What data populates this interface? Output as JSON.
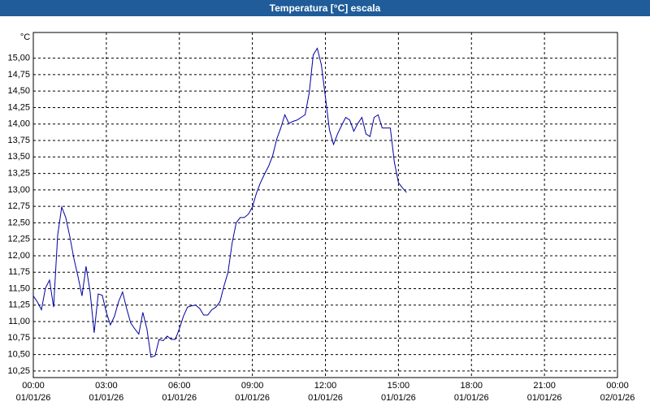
{
  "chart_data": {
    "type": "line",
    "title": "Temperatura [°C] escala",
    "y_label": "°C",
    "xlim": [
      0,
      1440
    ],
    "ylim": [
      10.15,
      15.39
    ],
    "grid": true,
    "xticks": [
      {
        "value": 0,
        "label": "00:00",
        "date": "01/01/26"
      },
      {
        "value": 180,
        "label": "03:00",
        "date": "01/01/26"
      },
      {
        "value": 360,
        "label": "06:00",
        "date": "01/01/26"
      },
      {
        "value": 540,
        "label": "09:00",
        "date": "01/01/26"
      },
      {
        "value": 720,
        "label": "12:00",
        "date": "01/01/26"
      },
      {
        "value": 900,
        "label": "15:00",
        "date": "01/01/26"
      },
      {
        "value": 1080,
        "label": "18:00",
        "date": "01/01/26"
      },
      {
        "value": 1260,
        "label": "21:00",
        "date": "01/01/26"
      },
      {
        "value": 1440,
        "label": "00:00",
        "date": "02/01/26"
      }
    ],
    "yticks": [
      {
        "value": 10.25,
        "label": "10,25"
      },
      {
        "value": 10.5,
        "label": "10,50"
      },
      {
        "value": 10.75,
        "label": "10,75"
      },
      {
        "value": 11,
        "label": "11,00"
      },
      {
        "value": 11.25,
        "label": "11,25"
      },
      {
        "value": 11.5,
        "label": "11,50"
      },
      {
        "value": 11.75,
        "label": "11,75"
      },
      {
        "value": 12,
        "label": "12,00"
      },
      {
        "value": 12.25,
        "label": "12,25"
      },
      {
        "value": 12.5,
        "label": "12,50"
      },
      {
        "value": 12.75,
        "label": "12,75"
      },
      {
        "value": 13,
        "label": "13,00"
      },
      {
        "value": 13.25,
        "label": "13,25"
      },
      {
        "value": 13.5,
        "label": "13,50"
      },
      {
        "value": 13.75,
        "label": "13,75"
      },
      {
        "value": 14,
        "label": "14,00"
      },
      {
        "value": 14.25,
        "label": "14,25"
      },
      {
        "value": 14.5,
        "label": "14,50"
      },
      {
        "value": 14.75,
        "label": "14,75"
      },
      {
        "value": 15,
        "label": "15,00"
      }
    ],
    "series": [
      {
        "color": "#0000a0",
        "x": [
          0,
          10,
          20,
          30,
          40,
          50,
          60,
          70,
          80,
          90,
          100,
          110,
          120,
          130,
          140,
          150,
          160,
          170,
          180,
          190,
          200,
          210,
          220,
          230,
          240,
          250,
          260,
          270,
          280,
          290,
          300,
          310,
          320,
          330,
          340,
          350,
          360,
          370,
          380,
          390,
          400,
          410,
          420,
          430,
          440,
          450,
          460,
          470,
          480,
          490,
          500,
          510,
          520,
          530,
          540,
          550,
          560,
          570,
          580,
          590,
          600,
          610,
          620,
          630,
          640,
          650,
          660,
          670,
          680,
          690,
          700,
          710,
          720,
          730,
          740,
          750,
          760,
          770,
          780,
          790,
          800,
          810,
          820,
          830,
          840,
          850,
          860,
          870,
          880,
          890,
          900,
          910,
          920
        ],
        "values": [
          11.39,
          11.3,
          11.18,
          11.51,
          11.63,
          11.22,
          12.31,
          12.74,
          12.58,
          12.29,
          11.96,
          11.69,
          11.39,
          11.84,
          11.45,
          10.83,
          11.42,
          11.4,
          11.14,
          10.95,
          11.08,
          11.3,
          11.45,
          11.2,
          10.98,
          10.89,
          10.81,
          11.14,
          10.89,
          10.46,
          10.48,
          10.73,
          10.71,
          10.78,
          10.73,
          10.73,
          10.89,
          11.08,
          11.22,
          11.24,
          11.25,
          11.2,
          11.1,
          11.1,
          11.18,
          11.22,
          11.3,
          11.54,
          11.75,
          12.19,
          12.5,
          12.58,
          12.58,
          12.63,
          12.74,
          12.95,
          13.11,
          13.24,
          13.36,
          13.52,
          13.77,
          13.94,
          14.14,
          14.01,
          14.04,
          14.06,
          14.1,
          14.14,
          14.47,
          15.05,
          15.15,
          14.9,
          14.41,
          13.91,
          13.69,
          13.85,
          13.98,
          14.1,
          14.06,
          13.89,
          14.01,
          14.1,
          13.85,
          13.81,
          14.1,
          14.14,
          13.94,
          13.94,
          13.94,
          13.42,
          13.11,
          13.03,
          12.96
        ]
      }
    ]
  }
}
